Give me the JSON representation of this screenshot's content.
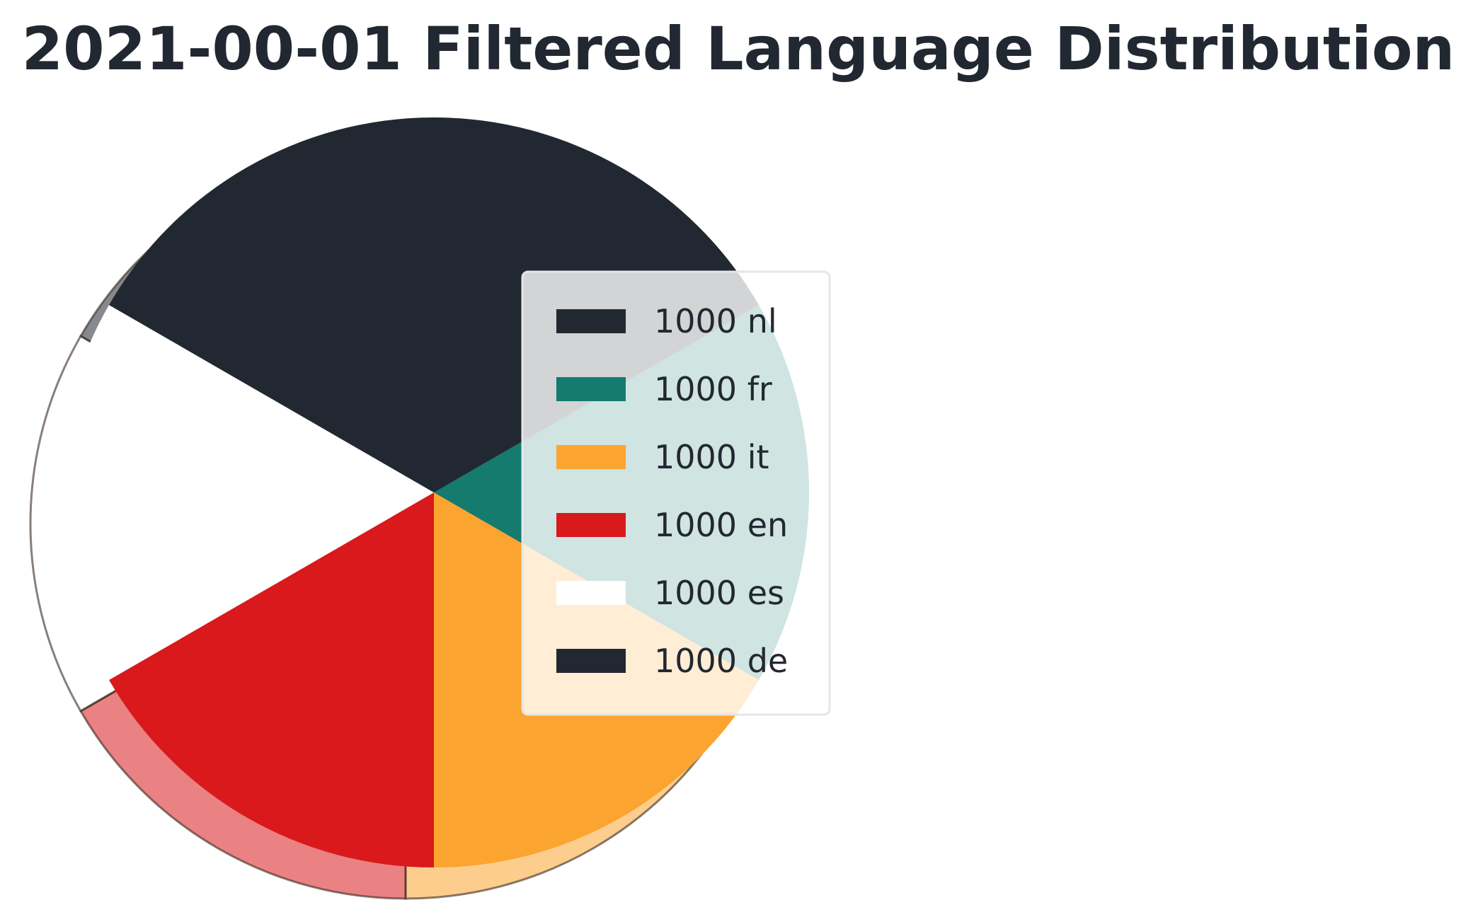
{
  "chart_data": {
    "type": "pie",
    "title": "2021-00-01 Filtered Language Distribution",
    "legend_position": "right",
    "slices": [
      {
        "label": "nl",
        "value": 1000,
        "legend_text": "1000 nl",
        "color": "#222831"
      },
      {
        "label": "fr",
        "value": 1000,
        "legend_text": "1000 fr",
        "color": "#147b6e"
      },
      {
        "label": "it",
        "value": 1000,
        "legend_text": "1000 it",
        "color": "#fca430"
      },
      {
        "label": "en",
        "value": 1000,
        "legend_text": "1000 en",
        "color": "#d9191b"
      },
      {
        "label": "es",
        "value": 1000,
        "legend_text": "1000 es",
        "color": "#ffffff"
      },
      {
        "label": "de",
        "value": 1000,
        "legend_text": "1000 de",
        "color": "#222831"
      }
    ]
  }
}
